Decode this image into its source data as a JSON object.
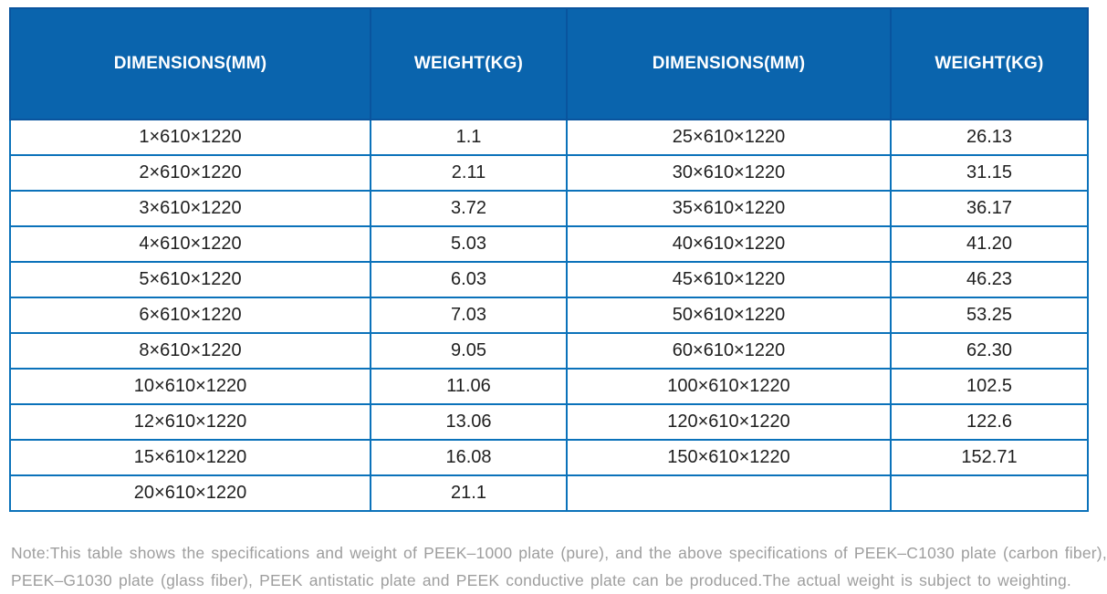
{
  "table": {
    "columns": [
      "DIMENSIONS(MM)",
      "WEIGHT(KG)",
      "DIMENSIONS(MM)",
      "WEIGHT(KG)"
    ],
    "rows": [
      [
        "1×610×1220",
        "1.1",
        "25×610×1220",
        "26.13"
      ],
      [
        "2×610×1220",
        "2.11",
        "30×610×1220",
        "31.15"
      ],
      [
        "3×610×1220",
        "3.72",
        "35×610×1220",
        "36.17"
      ],
      [
        "4×610×1220",
        "5.03",
        "40×610×1220",
        "41.20"
      ],
      [
        "5×610×1220",
        "6.03",
        "45×610×1220",
        "46.23"
      ],
      [
        "6×610×1220",
        "7.03",
        "50×610×1220",
        "53.25"
      ],
      [
        "8×610×1220",
        "9.05",
        "60×610×1220",
        "62.30"
      ],
      [
        "10×610×1220",
        "11.06",
        "100×610×1220",
        "102.5"
      ],
      [
        "12×610×1220",
        "13.06",
        "120×610×1220",
        "122.6"
      ],
      [
        "15×610×1220",
        "16.08",
        "150×610×1220",
        "152.71"
      ],
      [
        "20×610×1220",
        "21.1",
        "",
        ""
      ]
    ]
  },
  "note": {
    "line1": "Note:This table shows the specifications and weight of PEEK–1000 plate (pure), and the above specifications of PEEK–C1030 plate (carbon fiber),",
    "line2": "PEEK–G1030 plate (glass fiber), PEEK antistatic plate and PEEK conductive plate can be produced.The actual weight is subject to weighting."
  },
  "colors": {
    "header_background": "#0a64ad",
    "header_border": "#09549e",
    "grid_border": "#0b72ba",
    "header_text": "#ffffff",
    "cell_text": "#1f1f1f",
    "note_text": "#9e9e9e"
  }
}
